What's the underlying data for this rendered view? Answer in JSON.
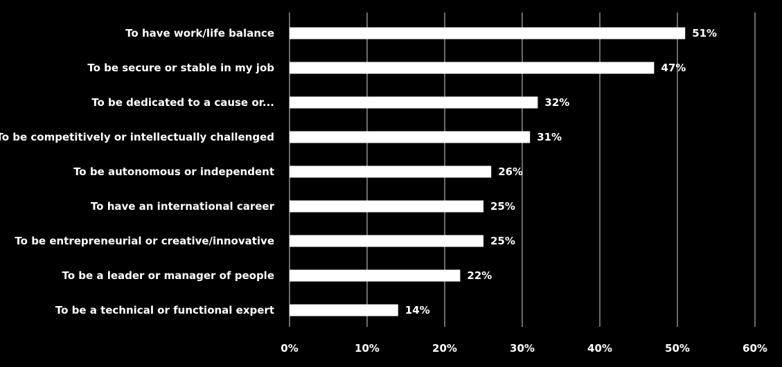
{
  "chart_data": {
    "type": "bar",
    "orientation": "horizontal",
    "categories": [
      "To have work/life balance",
      "To be secure or stable in my job",
      "To be dedicated to a cause or...",
      "To be competitively or intellectually challenged",
      "To be autonomous or independent",
      "To have an international career",
      "To be entrepreneurial or creative/innovative",
      "To be a leader or manager of people",
      "To be a technical or functional expert"
    ],
    "values": [
      51,
      47,
      32,
      31,
      26,
      25,
      25,
      22,
      14
    ],
    "value_labels": [
      "51%",
      "47%",
      "32%",
      "31%",
      "26%",
      "25%",
      "25%",
      "22%",
      "14%"
    ],
    "xlim": [
      0,
      60
    ],
    "x_ticks": [
      0,
      10,
      20,
      30,
      40,
      50,
      60
    ],
    "x_tick_labels": [
      "0%",
      "10%",
      "20%",
      "30%",
      "40%",
      "50%",
      "60%"
    ],
    "grid": true,
    "colors": {
      "background": "#000000",
      "bar": "#ffffff",
      "gridline": "#d9d9d9",
      "text": "#ffffff"
    }
  }
}
